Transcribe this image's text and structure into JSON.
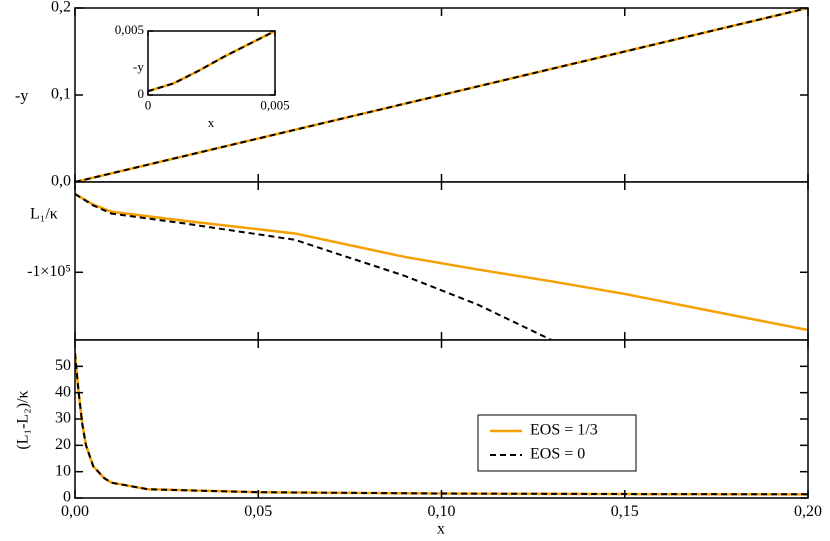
{
  "chart_data": [
    {
      "type": "line",
      "ylabel": "-y",
      "xlim": [
        0,
        0.2
      ],
      "ylim": [
        0,
        0.2
      ],
      "xticks": [
        0,
        0.05,
        0.1,
        0.15,
        0.2
      ],
      "show_xtick_labels": false,
      "yticks": [
        {
          "value": 0,
          "label": "0,0"
        },
        {
          "value": 0.1,
          "label": "0,1"
        },
        {
          "value": 0.2,
          "label": "0,2"
        }
      ],
      "x": [
        0,
        0.05,
        0.1,
        0.15,
        0.2
      ],
      "series": [
        {
          "color": "#f5a000",
          "style": "solid",
          "values": [
            0,
            0.05,
            0.1,
            0.15,
            0.2
          ]
        },
        {
          "color": "#000000",
          "style": "dashed",
          "values": [
            0,
            0.05,
            0.1,
            0.15,
            0.2
          ]
        }
      ]
    },
    {
      "type": "line",
      "xlabel": "x",
      "ylabel": "-y",
      "xlim": [
        0,
        0.005
      ],
      "ylim": [
        0,
        0.005
      ],
      "xticks": [
        0,
        {
          "value": 0.005,
          "label": "0,005"
        }
      ],
      "show_xtick_labels": true,
      "yticks": [
        0,
        {
          "value": 0.005,
          "label": "0,005"
        }
      ],
      "x": [
        0,
        0.001,
        0.002,
        0.003,
        0.004,
        0.005
      ],
      "series": [
        {
          "color": "#f5a000",
          "style": "solid",
          "values": [
            0.0003,
            0.0009,
            0.0019,
            0.003,
            0.004,
            0.005
          ]
        },
        {
          "color": "#000000",
          "style": "dashed",
          "values": [
            0.0003,
            0.0009,
            0.0019,
            0.003,
            0.004,
            0.005
          ]
        }
      ]
    },
    {
      "type": "line",
      "ylabel": "L₁/κ",
      "xlim": [
        0,
        0.2
      ],
      "ylim": [
        -175000,
        0
      ],
      "xticks": [
        0,
        0.05,
        0.1,
        0.15,
        0.2
      ],
      "show_xtick_labels": false,
      "yticks": [
        {
          "value": -100000,
          "label": "-1×10⁵"
        }
      ],
      "x": [
        0,
        0.005,
        0.01,
        0.03,
        0.06,
        0.09,
        0.11,
        0.13,
        0.15,
        0.2
      ],
      "series": [
        {
          "color": "#f5a000",
          "style": "solid",
          "values": [
            -13300,
            -25000,
            -33000,
            -43000,
            -57000,
            -83000,
            -97000,
            -110000,
            -124000,
            -164000
          ]
        },
        {
          "color": "#000000",
          "style": "dashed",
          "values": [
            -13300,
            -26000,
            -35000,
            -46000,
            -64000,
            -104000,
            -136000,
            -175000,
            null,
            null
          ]
        }
      ]
    },
    {
      "type": "line",
      "xlabel": "x",
      "ylabel": "(L₁-L₂)/κ",
      "xlim": [
        0,
        0.2
      ],
      "ylim": [
        0,
        60
      ],
      "xticks": [
        {
          "value": 0,
          "label": "0,00"
        },
        {
          "value": 0.05,
          "label": "0,05"
        },
        {
          "value": 0.1,
          "label": "0,10"
        },
        {
          "value": 0.15,
          "label": "0,15"
        },
        {
          "value": 0.2,
          "label": "0,20"
        }
      ],
      "show_xtick_labels": true,
      "yticks": [
        0,
        10,
        20,
        30,
        40,
        50
      ],
      "legend": true,
      "x": [
        0,
        0.001,
        0.002,
        0.003,
        0.005,
        0.008,
        0.01,
        0.02,
        0.05,
        0.1,
        0.15,
        0.2
      ],
      "series": [
        {
          "name": "EOS = 1/3",
          "color": "#f5a000",
          "style": "solid",
          "values": [
            55,
            40,
            28,
            20,
            12,
            7.5,
            5.8,
            3.3,
            2.2,
            1.7,
            1.5,
            1.4
          ]
        },
        {
          "name": "EOS = 0",
          "color": "#000000",
          "style": "dashed",
          "values": [
            55,
            40,
            28,
            20,
            12,
            7.5,
            5.8,
            3.3,
            2.2,
            1.7,
            1.5,
            1.4
          ]
        }
      ]
    }
  ]
}
